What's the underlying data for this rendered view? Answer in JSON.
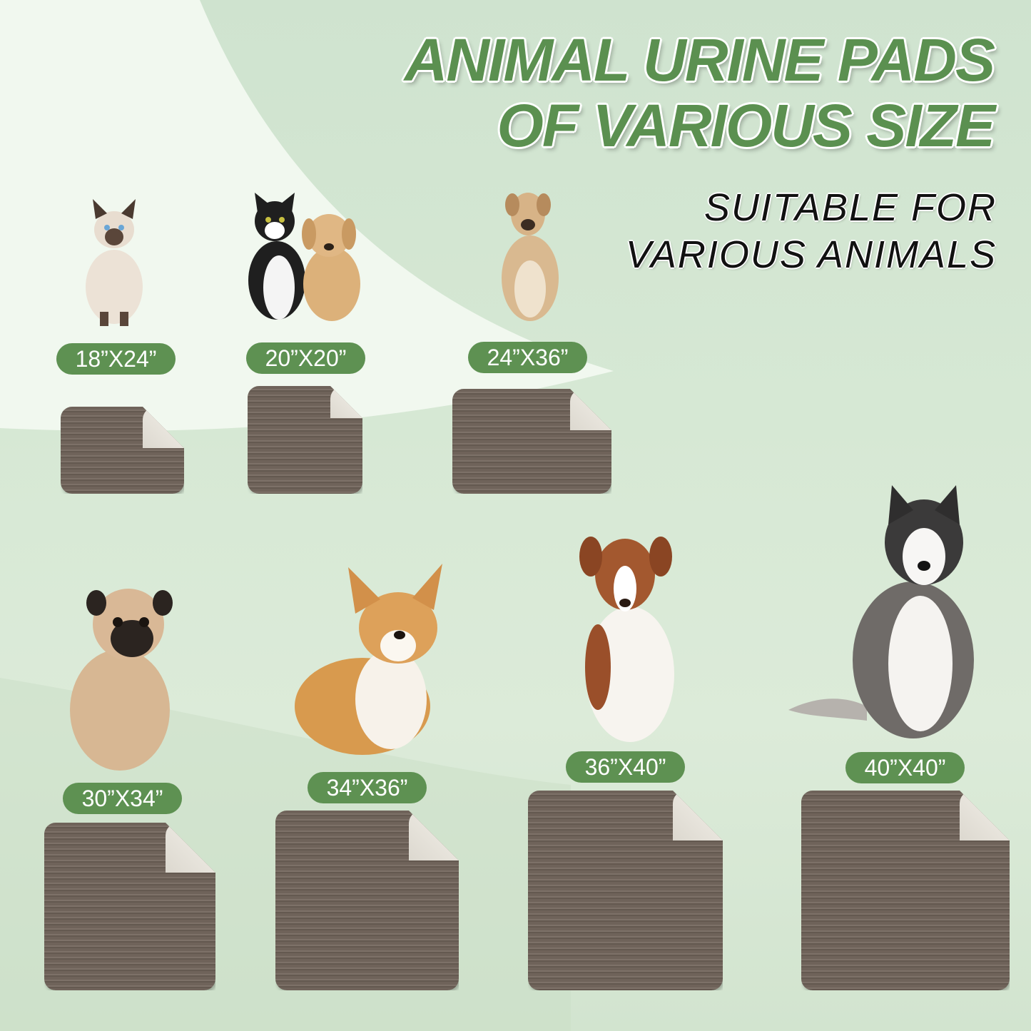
{
  "title": {
    "line1": "ANIMAL URINE PADS",
    "line2": "OF VARIOUS SIZE"
  },
  "subtitle": {
    "line1": "SUITABLE FOR",
    "line2": "VARIOUS ANIMALS"
  },
  "colors": {
    "accent": "#5e9152",
    "pad": "#6f635a",
    "pad_back": "#efece4",
    "background": "#d6e8d4"
  },
  "sizes": [
    {
      "label": "18”X24”",
      "animal": "siamese-cat"
    },
    {
      "label": "20”X20”",
      "animal": "cat-and-puppy"
    },
    {
      "label": "24”X36”",
      "animal": "tan-dog"
    },
    {
      "label": "30”X34”",
      "animal": "pug"
    },
    {
      "label": "34”X36”",
      "animal": "corgi"
    },
    {
      "label": "36”X40”",
      "animal": "australian-shepherd"
    },
    {
      "label": "40”X40”",
      "animal": "husky"
    }
  ]
}
